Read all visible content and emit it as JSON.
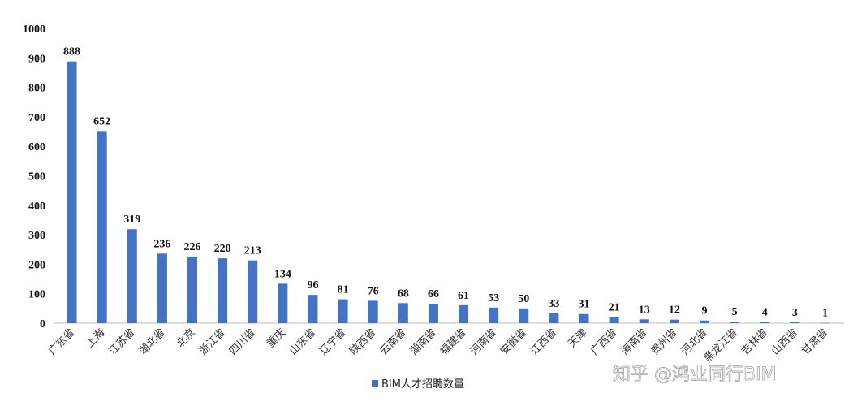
{
  "chart_data": {
    "type": "bar",
    "categories": [
      "广东省",
      "上海",
      "江苏省",
      "湖北省",
      "北京",
      "浙江省",
      "四川省",
      "重庆",
      "山东省",
      "辽宁省",
      "陕西省",
      "云南省",
      "湖南省",
      "福建省",
      "河南省",
      "安徽省",
      "江西省",
      "天津",
      "广西省",
      "海南省",
      "贵州省",
      "河北省",
      "黑龙江省",
      "吉林省",
      "山西省",
      "甘肃省"
    ],
    "series": [
      {
        "name": "BIM人才招聘数量",
        "values": [
          888,
          652,
          319,
          236,
          226,
          220,
          213,
          134,
          96,
          81,
          76,
          68,
          66,
          61,
          53,
          50,
          33,
          31,
          21,
          13,
          12,
          9,
          5,
          4,
          3,
          1
        ]
      }
    ],
    "title": "",
    "xlabel": "",
    "ylabel": "",
    "ylim": [
      0,
      1000
    ],
    "yticks": [
      0,
      100,
      200,
      300,
      400,
      500,
      600,
      700,
      800,
      900,
      1000
    ],
    "grid": false,
    "legend": "bottom-center",
    "bar_color": "#4472C4"
  },
  "watermark": "知乎 @鸿业同行BIM"
}
